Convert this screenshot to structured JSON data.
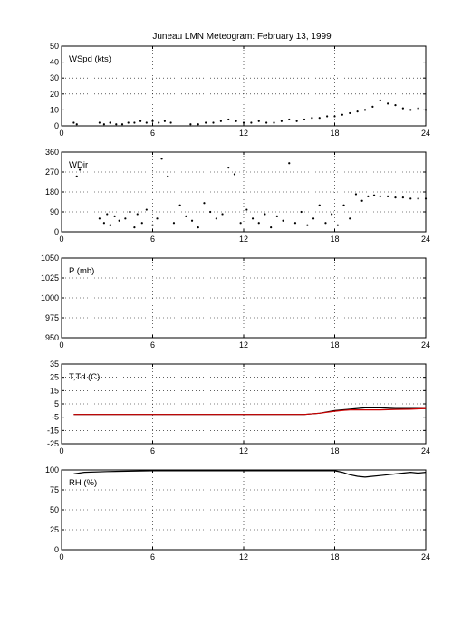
{
  "title": "Juneau LMN Meteogram:  February 13, 1999",
  "chart_data": [
    {
      "type": "scatter",
      "label": "WSpd (kts)",
      "xlim": [
        0,
        24
      ],
      "ylim": [
        0,
        50
      ],
      "xticks": [
        0,
        6,
        12,
        18,
        24
      ],
      "yticks": [
        0,
        10,
        20,
        30,
        40,
        50
      ],
      "grid": true,
      "series": [
        {
          "color": "#000000",
          "x": [
            0.8,
            1.0,
            2.5,
            2.8,
            3.2,
            3.6,
            4.0,
            4.4,
            4.8,
            5.2,
            5.6,
            6.0,
            6.4,
            6.8,
            7.2,
            8.5,
            9.0,
            9.5,
            10.0,
            10.5,
            11.0,
            11.5,
            12.0,
            12.5,
            13.0,
            13.5,
            14.0,
            14.5,
            15.0,
            15.5,
            16.0,
            16.5,
            17.0,
            17.5,
            18.0,
            18.5,
            19.0,
            19.5,
            20.0,
            20.5,
            21.0,
            21.5,
            22.0,
            22.5,
            23.0,
            23.5,
            24.0
          ],
          "y": [
            2,
            1,
            2,
            1,
            2,
            1,
            1,
            2,
            2,
            3,
            2,
            3,
            2,
            3,
            2,
            1,
            1,
            2,
            2,
            3,
            4,
            3,
            2,
            2,
            3,
            2,
            2,
            3,
            4,
            3,
            4,
            5,
            5,
            6,
            6,
            7,
            8,
            9,
            10,
            12,
            16,
            14,
            13,
            11,
            10,
            11,
            10
          ]
        }
      ]
    },
    {
      "type": "scatter",
      "label": "WDir",
      "xlim": [
        0,
        24
      ],
      "ylim": [
        0,
        360
      ],
      "xticks": [
        0,
        6,
        12,
        18,
        24
      ],
      "yticks": [
        0,
        90,
        180,
        270,
        360
      ],
      "grid": true,
      "series": [
        {
          "color": "#000000",
          "x": [
            1.0,
            1.2,
            2.5,
            2.8,
            3.0,
            3.2,
            3.5,
            3.8,
            4.2,
            4.5,
            4.8,
            5.0,
            5.3,
            5.6,
            6.0,
            6.3,
            6.6,
            7.0,
            7.4,
            7.8,
            8.2,
            8.6,
            9.0,
            9.4,
            9.8,
            10.2,
            10.6,
            11.0,
            11.4,
            11.8,
            12.2,
            12.6,
            13.0,
            13.4,
            13.8,
            14.2,
            14.6,
            15.0,
            15.4,
            15.8,
            16.2,
            16.6,
            17.0,
            17.4,
            17.8,
            18.2,
            18.6,
            19.0,
            19.4,
            19.8,
            20.2,
            20.6,
            21.0,
            21.5,
            22.0,
            22.5,
            23.0,
            23.5,
            24.0
          ],
          "y": [
            250,
            280,
            60,
            40,
            80,
            30,
            70,
            50,
            60,
            90,
            20,
            80,
            40,
            100,
            30,
            60,
            330,
            250,
            40,
            120,
            70,
            50,
            20,
            130,
            90,
            60,
            80,
            290,
            260,
            40,
            100,
            60,
            40,
            80,
            20,
            70,
            50,
            310,
            40,
            90,
            30,
            60,
            120,
            40,
            80,
            30,
            120,
            60,
            170,
            140,
            160,
            165,
            160,
            160,
            155,
            155,
            150,
            150,
            150
          ]
        }
      ]
    },
    {
      "type": "scatter",
      "label": "P (mb)",
      "xlim": [
        0,
        24
      ],
      "ylim": [
        950,
        1050
      ],
      "xticks": [
        0,
        6,
        12,
        18,
        24
      ],
      "yticks": [
        950,
        975,
        1000,
        1025,
        1050
      ],
      "grid": true,
      "series": []
    },
    {
      "type": "line",
      "label": "T,Td (C)",
      "xlim": [
        0,
        24
      ],
      "ylim": [
        -25,
        35
      ],
      "xticks": [
        0,
        6,
        12,
        18,
        24
      ],
      "yticks": [
        -25,
        -15,
        -5,
        5,
        15,
        25,
        35
      ],
      "grid": true,
      "series": [
        {
          "color": "#000000",
          "x": [
            0.8,
            2,
            4,
            6,
            8,
            10,
            12,
            14,
            16,
            17,
            18,
            18.5,
            19,
            19.5,
            20,
            20.5,
            21,
            22,
            23,
            24
          ],
          "y": [
            -3,
            -3,
            -3,
            -3,
            -3,
            -3,
            -3,
            -3,
            -3,
            -2,
            0,
            0.5,
            1,
            1.5,
            2,
            2,
            2,
            1.5,
            1.5,
            1.5
          ]
        },
        {
          "color": "#cc0000",
          "x": [
            0.8,
            2,
            4,
            6,
            8,
            10,
            12,
            14,
            16,
            17,
            18,
            18.5,
            19,
            19.5,
            20,
            20.5,
            21,
            22,
            23,
            24
          ],
          "y": [
            -3,
            -3,
            -3,
            -3,
            -3,
            -3,
            -3,
            -3,
            -3,
            -2,
            -0.5,
            0,
            0.5,
            0.5,
            0.5,
            0.5,
            0.5,
            0.8,
            1,
            1.5
          ]
        }
      ]
    },
    {
      "type": "line",
      "label": "RH (%)",
      "xlim": [
        0,
        24
      ],
      "ylim": [
        0,
        100
      ],
      "xticks": [
        0,
        6,
        12,
        18,
        24
      ],
      "yticks": [
        0,
        25,
        50,
        75,
        100
      ],
      "grid": true,
      "series": [
        {
          "color": "#000000",
          "x": [
            0.8,
            1.5,
            3,
            6,
            9,
            12,
            15,
            17,
            18,
            18.5,
            19,
            19.5,
            20,
            20.5,
            21,
            21.5,
            22,
            22.5,
            23,
            23.5,
            24
          ],
          "y": [
            95,
            97,
            98,
            99,
            99,
            99,
            99,
            99,
            99,
            97,
            94,
            92,
            91,
            92,
            93,
            94,
            95,
            96,
            97,
            96,
            97
          ]
        }
      ]
    }
  ]
}
